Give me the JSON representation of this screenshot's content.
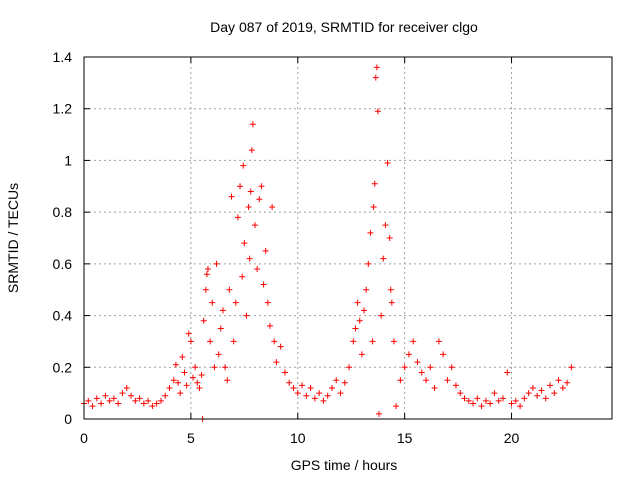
{
  "chart_data": {
    "type": "scatter",
    "title": "Day 087 of 2019, SRMTID for receiver clgo",
    "xlabel": "GPS time / hours",
    "ylabel": "SRMTID / TECUs",
    "xlim": [
      0,
      24.7
    ],
    "ylim": [
      0,
      1.4
    ],
    "xticks": [
      0,
      5,
      10,
      15,
      20
    ],
    "xtick_labels": [
      "0",
      "5",
      "10",
      "15",
      "20"
    ],
    "yticks": [
      0,
      0.2,
      0.4,
      0.6,
      0.8,
      1.0,
      1.2,
      1.4
    ],
    "ytick_labels": [
      "0",
      "0.2",
      "0.4",
      "0.6",
      "0.8",
      "1",
      "1.2",
      "1.4"
    ],
    "grid": true,
    "marker": "+",
    "color": "#ff0000",
    "series": [
      {
        "name": "SRMTID",
        "points": [
          [
            0.0,
            0.06
          ],
          [
            0.2,
            0.07
          ],
          [
            0.4,
            0.05
          ],
          [
            0.6,
            0.08
          ],
          [
            0.8,
            0.06
          ],
          [
            1.0,
            0.09
          ],
          [
            1.2,
            0.07
          ],
          [
            1.4,
            0.08
          ],
          [
            1.6,
            0.06
          ],
          [
            1.8,
            0.1
          ],
          [
            2.0,
            0.12
          ],
          [
            2.2,
            0.09
          ],
          [
            2.4,
            0.07
          ],
          [
            2.6,
            0.08
          ],
          [
            2.8,
            0.06
          ],
          [
            3.0,
            0.07
          ],
          [
            3.2,
            0.05
          ],
          [
            3.4,
            0.06
          ],
          [
            3.6,
            0.07
          ],
          [
            3.8,
            0.09
          ],
          [
            4.0,
            0.12
          ],
          [
            4.2,
            0.15
          ],
          [
            4.3,
            0.21
          ],
          [
            4.4,
            0.14
          ],
          [
            4.5,
            0.1
          ],
          [
            4.6,
            0.24
          ],
          [
            4.7,
            0.18
          ],
          [
            4.8,
            0.13
          ],
          [
            4.9,
            0.33
          ],
          [
            5.0,
            0.3
          ],
          [
            5.1,
            0.16
          ],
          [
            5.2,
            0.2
          ],
          [
            5.3,
            0.14
          ],
          [
            5.4,
            0.12
          ],
          [
            5.5,
            0.17
          ],
          [
            5.55,
            0.0
          ],
          [
            5.6,
            0.38
          ],
          [
            5.7,
            0.5
          ],
          [
            5.75,
            0.56
          ],
          [
            5.8,
            0.58
          ],
          [
            5.9,
            0.3
          ],
          [
            6.0,
            0.45
          ],
          [
            6.1,
            0.2
          ],
          [
            6.2,
            0.6
          ],
          [
            6.3,
            0.25
          ],
          [
            6.4,
            0.35
          ],
          [
            6.5,
            0.42
          ],
          [
            6.6,
            0.2
          ],
          [
            6.7,
            0.15
          ],
          [
            6.8,
            0.5
          ],
          [
            6.9,
            0.86
          ],
          [
            7.0,
            0.3
          ],
          [
            7.1,
            0.45
          ],
          [
            7.2,
            0.78
          ],
          [
            7.3,
            0.9
          ],
          [
            7.4,
            0.55
          ],
          [
            7.45,
            0.98
          ],
          [
            7.5,
            0.68
          ],
          [
            7.6,
            0.4
          ],
          [
            7.7,
            0.82
          ],
          [
            7.75,
            0.62
          ],
          [
            7.8,
            0.88
          ],
          [
            7.85,
            1.04
          ],
          [
            7.9,
            1.14
          ],
          [
            8.0,
            0.75
          ],
          [
            8.1,
            0.58
          ],
          [
            8.2,
            0.85
          ],
          [
            8.3,
            0.9
          ],
          [
            8.4,
            0.52
          ],
          [
            8.5,
            0.65
          ],
          [
            8.6,
            0.45
          ],
          [
            8.7,
            0.36
          ],
          [
            8.8,
            0.82
          ],
          [
            8.9,
            0.3
          ],
          [
            9.0,
            0.22
          ],
          [
            9.2,
            0.28
          ],
          [
            9.4,
            0.18
          ],
          [
            9.6,
            0.14
          ],
          [
            9.8,
            0.12
          ],
          [
            10.0,
            0.1
          ],
          [
            10.2,
            0.13
          ],
          [
            10.4,
            0.09
          ],
          [
            10.6,
            0.12
          ],
          [
            10.8,
            0.08
          ],
          [
            11.0,
            0.1
          ],
          [
            11.2,
            0.07
          ],
          [
            11.4,
            0.09
          ],
          [
            11.6,
            0.12
          ],
          [
            11.8,
            0.15
          ],
          [
            12.0,
            0.1
          ],
          [
            12.2,
            0.14
          ],
          [
            12.4,
            0.2
          ],
          [
            12.6,
            0.3
          ],
          [
            12.7,
            0.35
          ],
          [
            12.8,
            0.45
          ],
          [
            12.9,
            0.38
          ],
          [
            13.0,
            0.25
          ],
          [
            13.1,
            0.42
          ],
          [
            13.2,
            0.5
          ],
          [
            13.3,
            0.6
          ],
          [
            13.4,
            0.72
          ],
          [
            13.5,
            0.3
          ],
          [
            13.55,
            0.82
          ],
          [
            13.6,
            0.91
          ],
          [
            13.65,
            1.32
          ],
          [
            13.7,
            1.36
          ],
          [
            13.75,
            1.19
          ],
          [
            13.8,
            0.02
          ],
          [
            13.9,
            0.4
          ],
          [
            14.0,
            0.62
          ],
          [
            14.1,
            0.75
          ],
          [
            14.2,
            0.99
          ],
          [
            14.3,
            0.7
          ],
          [
            14.35,
            0.5
          ],
          [
            14.4,
            0.45
          ],
          [
            14.5,
            0.3
          ],
          [
            14.6,
            0.05
          ],
          [
            14.8,
            0.15
          ],
          [
            15.0,
            0.2
          ],
          [
            15.2,
            0.25
          ],
          [
            15.4,
            0.3
          ],
          [
            15.6,
            0.22
          ],
          [
            15.8,
            0.18
          ],
          [
            16.0,
            0.15
          ],
          [
            16.2,
            0.2
          ],
          [
            16.4,
            0.12
          ],
          [
            16.6,
            0.3
          ],
          [
            16.8,
            0.25
          ],
          [
            17.0,
            0.15
          ],
          [
            17.2,
            0.2
          ],
          [
            17.4,
            0.13
          ],
          [
            17.6,
            0.1
          ],
          [
            17.8,
            0.08
          ],
          [
            18.0,
            0.07
          ],
          [
            18.2,
            0.06
          ],
          [
            18.4,
            0.08
          ],
          [
            18.6,
            0.05
          ],
          [
            18.8,
            0.07
          ],
          [
            19.0,
            0.06
          ],
          [
            19.2,
            0.1
          ],
          [
            19.4,
            0.07
          ],
          [
            19.6,
            0.08
          ],
          [
            19.8,
            0.18
          ],
          [
            20.0,
            0.06
          ],
          [
            20.2,
            0.07
          ],
          [
            20.4,
            0.05
          ],
          [
            20.6,
            0.08
          ],
          [
            20.8,
            0.1
          ],
          [
            21.0,
            0.12
          ],
          [
            21.2,
            0.09
          ],
          [
            21.4,
            0.11
          ],
          [
            21.6,
            0.08
          ],
          [
            21.8,
            0.13
          ],
          [
            22.0,
            0.1
          ],
          [
            22.2,
            0.15
          ],
          [
            22.4,
            0.12
          ],
          [
            22.6,
            0.14
          ],
          [
            22.8,
            0.2
          ]
        ]
      }
    ]
  }
}
